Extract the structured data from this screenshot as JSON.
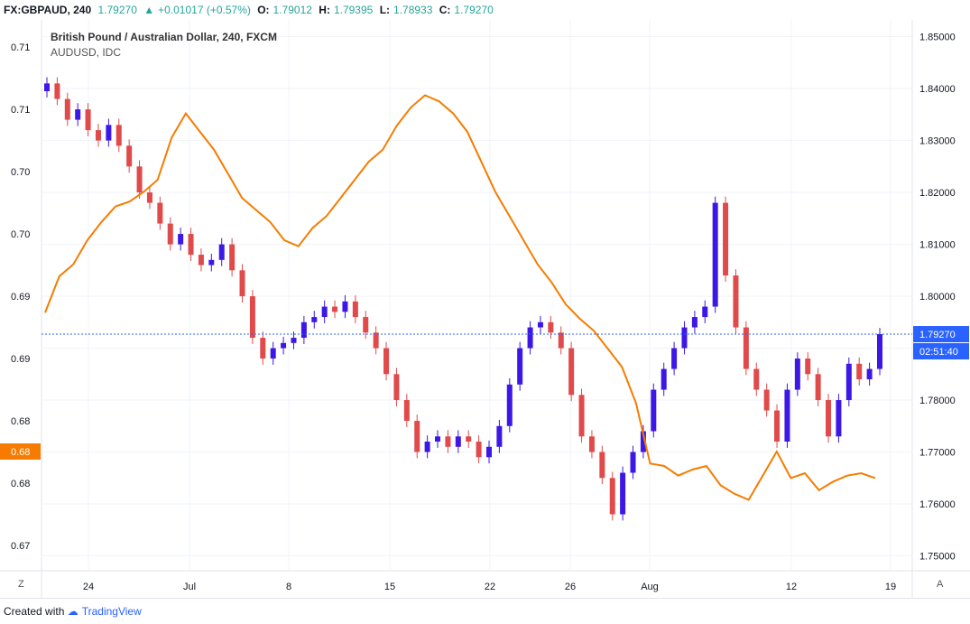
{
  "header": {
    "symbol": "FX:GBPAUD, 240",
    "last": "1.79270",
    "change": "+0.01017 (+0.57%)",
    "ohlc": [
      {
        "label": "O:",
        "value": "1.79012"
      },
      {
        "label": "H:",
        "value": "1.79395"
      },
      {
        "label": "L:",
        "value": "1.78933"
      },
      {
        "label": "C:",
        "value": "1.79270"
      }
    ],
    "colors": {
      "up": "#26a69a",
      "text": "#131722"
    }
  },
  "legend": {
    "main": "British Pound / Australian Dollar, 240, FXCM",
    "overlay": "AUDUSD, IDC"
  },
  "price_tags": {
    "right_price": "1.79270",
    "right_timer": "02:51:40",
    "left_price": "0.68",
    "right_color": "#2962ff",
    "left_color": "#f57c00"
  },
  "corner": {
    "left": "Z",
    "right": "A"
  },
  "footer": {
    "created": "Created with",
    "brand": "TradingView",
    "brand_icon": "tradingview-logo-icon"
  },
  "chart_data": {
    "type": "line",
    "title": "British Pound / Australian Dollar, 240, FXCM",
    "x_tick_labels": [
      "24",
      "Jul",
      "8",
      "15",
      "22",
      "26",
      "Aug",
      "12",
      "19"
    ],
    "right_axis": {
      "label": "GBPAUD",
      "ticks": [
        "1.85000",
        "1.84000",
        "1.83000",
        "1.82000",
        "1.81000",
        "1.80000",
        "1.79000",
        "1.78000",
        "1.77000",
        "1.76000",
        "1.75000"
      ],
      "range": [
        1.748,
        1.8515
      ]
    },
    "left_axis": {
      "label": "AUDUSD",
      "ticks": [
        "0.71",
        "0.71",
        "0.70",
        "0.70",
        "0.69",
        "0.69",
        "0.68",
        "0.68",
        "0.67"
      ],
      "range": [
        0.6695,
        0.714
      ]
    },
    "grid": true,
    "series": [
      {
        "name": "GBPAUD",
        "style": "candlestick",
        "colors": {
          "up": "#3d17e6",
          "down": "#e04a4a"
        },
        "close": [
          1.841,
          1.838,
          1.834,
          1.836,
          1.832,
          1.83,
          1.833,
          1.829,
          1.825,
          1.82,
          1.818,
          1.814,
          1.81,
          1.812,
          1.808,
          1.806,
          1.807,
          1.81,
          1.805,
          1.8,
          1.792,
          1.788,
          1.79,
          1.791,
          1.792,
          1.795,
          1.796,
          1.798,
          1.797,
          1.799,
          1.796,
          1.793,
          1.79,
          1.785,
          1.78,
          1.776,
          1.77,
          1.772,
          1.773,
          1.771,
          1.773,
          1.772,
          1.769,
          1.771,
          1.775,
          1.783,
          1.79,
          1.794,
          1.795,
          1.793,
          1.79,
          1.781,
          1.773,
          1.77,
          1.765,
          1.758,
          1.766,
          1.77,
          1.774,
          1.782,
          1.786,
          1.79,
          1.794,
          1.796,
          1.798,
          1.818,
          1.804,
          1.794,
          1.786,
          1.782,
          1.778,
          1.772,
          1.782,
          1.788,
          1.785,
          1.78,
          1.773,
          1.78,
          1.787,
          1.784,
          1.786,
          1.7927
        ]
      },
      {
        "name": "AUDUSD",
        "style": "line",
        "color": "#f57c00",
        "values": [
          0.6905,
          0.6935,
          0.6945,
          0.6965,
          0.698,
          0.6993,
          0.6997,
          0.7005,
          0.7015,
          0.705,
          0.707,
          0.7055,
          0.704,
          0.702,
          0.7,
          0.699,
          0.698,
          0.6965,
          0.696,
          0.6975,
          0.6985,
          0.7,
          0.7015,
          0.703,
          0.704,
          0.706,
          0.7075,
          0.7085,
          0.708,
          0.707,
          0.7055,
          0.703,
          0.7005,
          0.6985,
          0.6965,
          0.6945,
          0.693,
          0.6912,
          0.69,
          0.689,
          0.6875,
          0.686,
          0.683,
          0.678,
          0.6778,
          0.677,
          0.6775,
          0.6778,
          0.6762,
          0.6755,
          0.675,
          0.677,
          0.679,
          0.6768,
          0.6772,
          0.6758,
          0.6765,
          0.677,
          0.6772,
          0.6768
        ]
      }
    ]
  }
}
